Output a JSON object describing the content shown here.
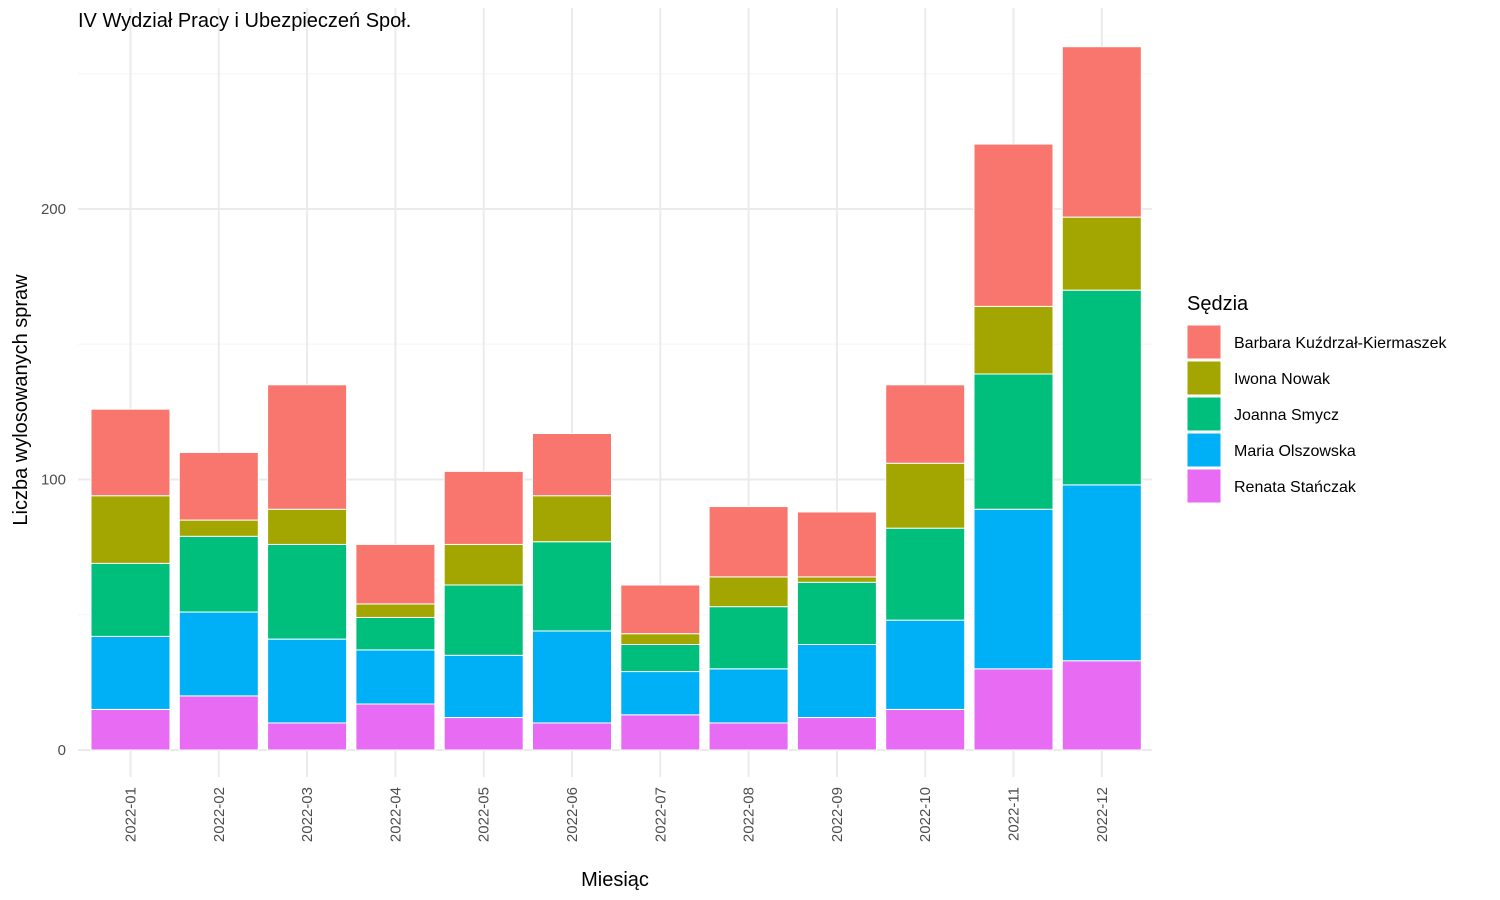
{
  "chart_data": {
    "type": "bar",
    "stacked": true,
    "title": "IV Wydział Pracy i Ubezpieczeń Społ.",
    "xlabel": "Miesiąc",
    "ylabel": "Liczba wylosowanych spraw",
    "ylim": [
      0,
      260
    ],
    "y_ticks": [
      0,
      100,
      200
    ],
    "grid": true,
    "legend_position": "right",
    "legend_title": "Sędzia",
    "categories": [
      "2022-01",
      "2022-02",
      "2022-03",
      "2022-04",
      "2022-05",
      "2022-06",
      "2022-07",
      "2022-08",
      "2022-09",
      "2022-10",
      "2022-11",
      "2022-12"
    ],
    "series": [
      {
        "name": "Renata Stańczak",
        "color": "#E76BF3",
        "values": [
          15,
          20,
          10,
          17,
          12,
          10,
          13,
          10,
          12,
          15,
          30,
          33
        ]
      },
      {
        "name": "Maria Olszowska",
        "color": "#00B0F6",
        "values": [
          27,
          31,
          31,
          20,
          23,
          34,
          16,
          20,
          27,
          33,
          59,
          65
        ]
      },
      {
        "name": "Joanna Smycz",
        "color": "#00BF7D",
        "values": [
          27,
          28,
          35,
          12,
          26,
          33,
          10,
          23,
          23,
          34,
          50,
          72
        ]
      },
      {
        "name": "Iwona Nowak",
        "color": "#A3A500",
        "values": [
          25,
          6,
          13,
          5,
          15,
          17,
          4,
          11,
          2,
          24,
          25,
          27
        ]
      },
      {
        "name": "Barbara Kuźdrzał-Kiermaszek",
        "color": "#F8766D",
        "values": [
          32,
          25,
          46,
          22,
          27,
          23,
          18,
          26,
          24,
          29,
          60,
          63
        ]
      }
    ]
  }
}
